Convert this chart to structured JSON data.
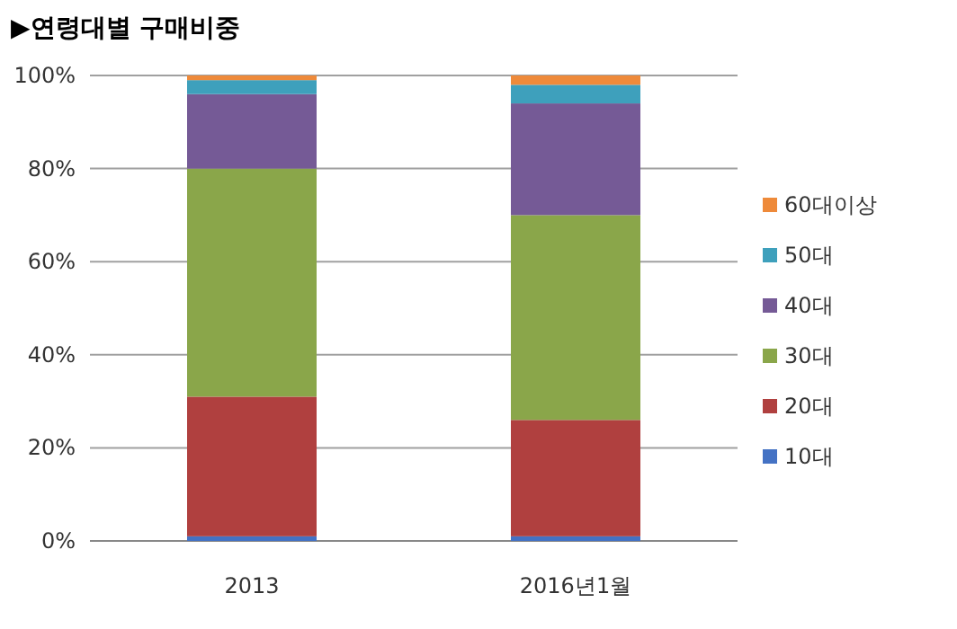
{
  "chart_data": {
    "type": "bar",
    "title": "▶연령대별 구매비중",
    "stacked": true,
    "categories": [
      "2013",
      "2016년1월"
    ],
    "series": [
      {
        "name": "10대",
        "color": "#4472c4",
        "values": [
          1,
          1
        ]
      },
      {
        "name": "20대",
        "color": "#b0403f",
        "values": [
          30,
          25
        ]
      },
      {
        "name": "30대",
        "color": "#8aa64a",
        "values": [
          49,
          44
        ]
      },
      {
        "name": "40대",
        "color": "#755a96",
        "values": [
          16,
          24
        ]
      },
      {
        "name": "50대",
        "color": "#3ea0bc",
        "values": [
          3,
          4
        ]
      },
      {
        "name": "60대이상",
        "color": "#ee8a3a",
        "values": [
          1,
          2
        ]
      }
    ],
    "ylim": [
      0,
      100
    ],
    "yticks": [
      {
        "value": 0,
        "label": "0%"
      },
      {
        "value": 20,
        "label": "20%"
      },
      {
        "value": 40,
        "label": "40%"
      },
      {
        "value": 60,
        "label": "60%"
      },
      {
        "value": 80,
        "label": "80%"
      },
      {
        "value": 100,
        "label": "100%"
      }
    ],
    "grid": "y",
    "legend": "right"
  }
}
